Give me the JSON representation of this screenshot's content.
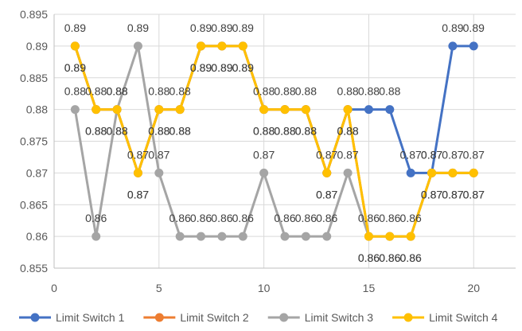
{
  "chart_data": {
    "type": "line",
    "title": "",
    "xlabel": "",
    "ylabel": "",
    "xlim": [
      0,
      22
    ],
    "ylim": [
      0.855,
      0.895
    ],
    "x_ticks": [
      0,
      5,
      10,
      15,
      20
    ],
    "x_tick_labels": [
      "0",
      "5",
      "10",
      "15",
      "20"
    ],
    "y_ticks": [
      0.855,
      0.86,
      0.865,
      0.87,
      0.875,
      0.88,
      0.885,
      0.89,
      0.895
    ],
    "y_tick_labels": [
      "0.855",
      "0.86",
      "0.865",
      "0.87",
      "0.875",
      "0.88",
      "0.885",
      "0.89",
      "0.895"
    ],
    "grid": true,
    "legend_position": "bottom",
    "x": [
      1,
      2,
      3,
      4,
      5,
      6,
      7,
      8,
      9,
      10,
      11,
      12,
      13,
      14,
      15,
      16,
      17,
      18,
      19,
      20
    ],
    "series": [
      {
        "name": "Limit Switch 1",
        "color": "#4472C4",
        "values": [
          0.89,
          0.88,
          0.88,
          0.87,
          0.88,
          0.88,
          0.89,
          0.89,
          0.89,
          0.88,
          0.88,
          0.88,
          0.87,
          0.88,
          0.88,
          0.88,
          0.87,
          0.87,
          0.89,
          0.89
        ],
        "labels": [
          "0.89",
          "0.88",
          "0.88",
          "0.87",
          "0.88",
          "0.88",
          "0.89",
          "0.89",
          "0.89",
          "0.88",
          "0.88",
          "0.88",
          "0.87",
          "0.88",
          "0.88",
          "0.88",
          "0.87",
          "0.87",
          "0.89",
          "0.89"
        ]
      },
      {
        "name": "Limit Switch 2",
        "color": "#ED7D31",
        "values": [
          0.89,
          0.88,
          0.88,
          0.87,
          0.88,
          0.88,
          0.89,
          0.89,
          0.89,
          0.88,
          0.88,
          0.88,
          0.87,
          0.88,
          0.86,
          0.86,
          0.86,
          0.87,
          0.87,
          0.87
        ],
        "labels": [
          "0.89",
          "0.88",
          "0.88",
          "0.87",
          "0.88",
          "0.88",
          "0.89",
          "0.89",
          "0.89",
          "0.88",
          "0.88",
          "0.88",
          "0.87",
          "0.88",
          "0.86",
          "0.86",
          "0.86",
          "0.87",
          "0.87",
          "0.87"
        ]
      },
      {
        "name": "Limit Switch 3",
        "color": "#A5A5A5",
        "values": [
          0.88,
          0.86,
          0.88,
          0.89,
          0.87,
          0.86,
          0.86,
          0.86,
          0.86,
          0.87,
          0.86,
          0.86,
          0.86,
          0.87,
          0.86,
          0.86,
          0.86,
          0.87,
          0.87,
          0.87
        ],
        "labels": [
          "0.88",
          "0.86",
          "0.88",
          "0.89",
          "0.87",
          "0.86",
          "0.86",
          "0.86",
          "0.86",
          "0.87",
          "0.86",
          "0.86",
          "0.86",
          "0.87",
          "0.86",
          "0.86",
          "0.86",
          "0.87",
          "0.87",
          "0.87"
        ]
      },
      {
        "name": "Limit Switch 4",
        "color": "#FFC000",
        "values": [
          0.89,
          0.88,
          0.88,
          0.87,
          0.88,
          0.88,
          0.89,
          0.89,
          0.89,
          0.88,
          0.88,
          0.88,
          0.87,
          0.88,
          0.86,
          0.86,
          0.86,
          0.87,
          0.87,
          0.87
        ],
        "labels": [
          "0.89",
          "0.88",
          "0.88",
          "0.87",
          "0.88",
          "0.88",
          "0.89",
          "0.89",
          "0.89",
          "0.88",
          "0.88",
          "0.88",
          "0.87",
          "0.88",
          "0.86",
          "0.86",
          "0.86",
          "0.87",
          "0.87",
          "0.87"
        ]
      }
    ],
    "styles": {
      "grid_color": "#D9D9D9",
      "axis_color": "#BFBFBF",
      "text_color": "#595959",
      "label_color": "#404040"
    }
  }
}
